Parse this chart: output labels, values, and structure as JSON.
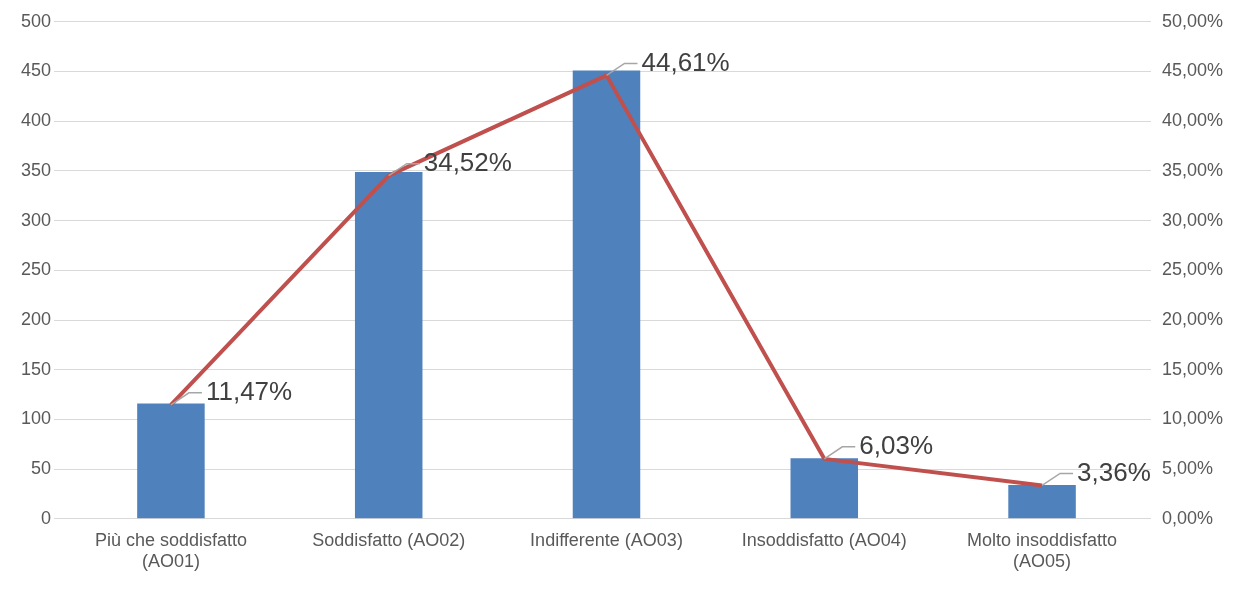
{
  "chart_data": {
    "type": "bar",
    "categories": [
      "Più che soddisfatto (AO01)",
      "Soddisfatto (AO02)",
      "Indifferente (AO03)",
      "Insoddisfatto (AO04)",
      "Molto insoddisfatto (AO05)"
    ],
    "series": [
      {
        "color": "#4f81bd",
        "values": [
          116,
          349,
          451,
          61,
          34
        ]
      },
      {
        "type": "line",
        "axis": "y2",
        "color": "#c0504d",
        "values": [
          11.47,
          34.52,
          44.61,
          6.03,
          3.36
        ],
        "value_labels": [
          "11,47%",
          "34,52%",
          "44,61%",
          "6,03%",
          "3,36%"
        ]
      }
    ],
    "ylim": [
      0,
      500
    ],
    "yticks": [
      0,
      50,
      100,
      150,
      200,
      250,
      300,
      350,
      400,
      450,
      500
    ],
    "y2lim": [
      0,
      50
    ],
    "y2ticks": [
      {
        "value": 0,
        "label": "0,00%"
      },
      {
        "value": 5,
        "label": "5,00%"
      },
      {
        "value": 10,
        "label": "10,00%"
      },
      {
        "value": 15,
        "label": "15,00%"
      },
      {
        "value": 20,
        "label": "20,00%"
      },
      {
        "value": 25,
        "label": "25,00%"
      },
      {
        "value": 30,
        "label": "30,00%"
      },
      {
        "value": 35,
        "label": "35,00%"
      },
      {
        "value": 40,
        "label": "40,00%"
      },
      {
        "value": 45,
        "label": "45,00%"
      },
      {
        "value": 50,
        "label": "50,00%"
      }
    ],
    "grid": "y",
    "legend": false,
    "marker": "none",
    "line_style": "solid"
  }
}
